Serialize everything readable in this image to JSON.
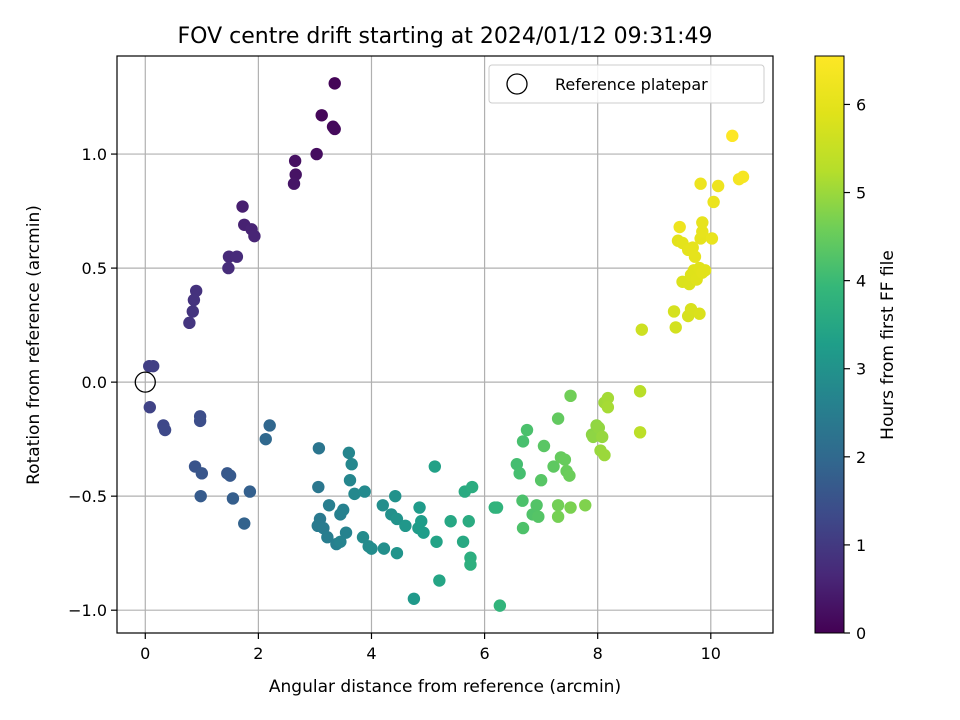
{
  "chart_data": {
    "type": "scatter",
    "title": "FOV centre drift starting at 2024/01/12 09:31:49",
    "xlabel": "Angular distance from reference (arcmin)",
    "ylabel": "Rotation from reference (arcmin)",
    "xlim": [
      -0.5,
      11.1
    ],
    "ylim": [
      -1.1,
      1.43
    ],
    "xticks": [
      0,
      2,
      4,
      6,
      8,
      10
    ],
    "xtick_labels": [
      "0",
      "2",
      "4",
      "6",
      "8",
      "10"
    ],
    "yticks": [
      -1.0,
      -0.5,
      0.0,
      0.5,
      1.0
    ],
    "ytick_labels": [
      "−1.0",
      "−0.5",
      "0.0",
      "0.5",
      "1.0"
    ],
    "grid": true,
    "legend": {
      "placement": "top-right",
      "entries": [
        "Reference platepar"
      ]
    },
    "reference_point": {
      "x": 0,
      "y": 0
    },
    "colorbar": {
      "label": "Hours from first FF file",
      "range": [
        0,
        6.55
      ],
      "ticks": [
        0,
        1,
        2,
        3,
        4,
        5,
        6
      ],
      "tick_labels": [
        "0",
        "1",
        "2",
        "3",
        "4",
        "5",
        "6"
      ],
      "colormap": "viridis"
    },
    "points": [
      [
        3.35,
        1.31,
        0.05
      ],
      [
        3.12,
        1.17,
        0.1
      ],
      [
        3.32,
        1.12,
        0.12
      ],
      [
        3.35,
        1.11,
        0.15
      ],
      [
        3.03,
        1.0,
        0.2
      ],
      [
        2.65,
        0.97,
        0.25
      ],
      [
        2.66,
        0.91,
        0.3
      ],
      [
        2.63,
        0.87,
        0.33
      ],
      [
        1.72,
        0.77,
        0.5
      ],
      [
        1.75,
        0.69,
        0.55
      ],
      [
        1.88,
        0.67,
        0.58
      ],
      [
        1.93,
        0.64,
        0.6
      ],
      [
        1.48,
        0.55,
        0.7
      ],
      [
        1.62,
        0.55,
        0.72
      ],
      [
        1.47,
        0.5,
        0.75
      ],
      [
        0.9,
        0.4,
        0.85
      ],
      [
        0.86,
        0.36,
        0.88
      ],
      [
        0.84,
        0.31,
        0.9
      ],
      [
        0.78,
        0.26,
        0.92
      ],
      [
        0.07,
        0.07,
        1.1
      ],
      [
        0.14,
        0.07,
        1.12
      ],
      [
        0.08,
        -0.11,
        1.2
      ],
      [
        0.32,
        -0.19,
        1.3
      ],
      [
        0.35,
        -0.21,
        1.32
      ],
      [
        0.97,
        -0.15,
        1.4
      ],
      [
        0.97,
        -0.17,
        1.42
      ],
      [
        0.88,
        -0.37,
        1.55
      ],
      [
        1.0,
        -0.4,
        1.58
      ],
      [
        1.45,
        -0.4,
        1.62
      ],
      [
        1.5,
        -0.41,
        1.65
      ],
      [
        0.98,
        -0.5,
        1.7
      ],
      [
        1.55,
        -0.51,
        1.75
      ],
      [
        1.85,
        -0.48,
        1.8
      ],
      [
        1.75,
        -0.62,
        1.85
      ],
      [
        2.2,
        -0.19,
        1.95
      ],
      [
        2.13,
        -0.25,
        2.0
      ],
      [
        3.07,
        -0.29,
        2.3
      ],
      [
        3.06,
        -0.46,
        2.35
      ],
      [
        3.09,
        -0.6,
        2.4
      ],
      [
        3.05,
        -0.63,
        2.42
      ],
      [
        3.15,
        -0.64,
        2.45
      ],
      [
        3.22,
        -0.68,
        2.5
      ],
      [
        3.25,
        -0.54,
        2.52
      ],
      [
        3.38,
        -0.71,
        2.55
      ],
      [
        3.45,
        -0.58,
        2.58
      ],
      [
        3.5,
        -0.56,
        2.6
      ],
      [
        3.55,
        -0.66,
        2.62
      ],
      [
        3.45,
        -0.7,
        2.64
      ],
      [
        3.6,
        -0.31,
        2.7
      ],
      [
        3.62,
        -0.43,
        2.72
      ],
      [
        3.65,
        -0.36,
        2.74
      ],
      [
        3.7,
        -0.49,
        2.76
      ],
      [
        3.88,
        -0.48,
        2.8
      ],
      [
        3.85,
        -0.68,
        2.82
      ],
      [
        3.95,
        -0.72,
        2.84
      ],
      [
        4.0,
        -0.73,
        2.86
      ],
      [
        4.2,
        -0.54,
        2.9
      ],
      [
        4.22,
        -0.73,
        2.92
      ],
      [
        4.35,
        -0.58,
        2.95
      ],
      [
        4.42,
        -0.5,
        3.0
      ],
      [
        4.45,
        -0.6,
        3.02
      ],
      [
        4.45,
        -0.75,
        3.05
      ],
      [
        4.6,
        -0.63,
        3.1
      ],
      [
        4.75,
        -0.95,
        3.15
      ],
      [
        4.85,
        -0.55,
        3.2
      ],
      [
        4.83,
        -0.64,
        3.22
      ],
      [
        4.88,
        -0.61,
        3.24
      ],
      [
        4.92,
        -0.66,
        3.26
      ],
      [
        5.12,
        -0.37,
        3.35
      ],
      [
        5.15,
        -0.7,
        3.4
      ],
      [
        5.2,
        -0.87,
        3.45
      ],
      [
        5.4,
        -0.61,
        3.5
      ],
      [
        5.62,
        -0.7,
        3.55
      ],
      [
        5.65,
        -0.48,
        3.6
      ],
      [
        5.72,
        -0.61,
        3.62
      ],
      [
        5.78,
        -0.46,
        3.65
      ],
      [
        5.75,
        -0.77,
        3.7
      ],
      [
        5.75,
        -0.8,
        3.72
      ],
      [
        6.18,
        -0.55,
        3.8
      ],
      [
        6.22,
        -0.55,
        3.82
      ],
      [
        6.27,
        -0.98,
        3.85
      ],
      [
        6.57,
        -0.36,
        4.1
      ],
      [
        6.62,
        -0.4,
        4.12
      ],
      [
        6.68,
        -0.26,
        4.15
      ],
      [
        6.75,
        -0.21,
        4.18
      ],
      [
        6.67,
        -0.52,
        4.2
      ],
      [
        6.68,
        -0.64,
        4.22
      ],
      [
        6.85,
        -0.58,
        4.25
      ],
      [
        6.92,
        -0.54,
        4.28
      ],
      [
        6.95,
        -0.59,
        4.3
      ],
      [
        7.0,
        -0.43,
        4.32
      ],
      [
        7.05,
        -0.28,
        4.35
      ],
      [
        7.22,
        -0.37,
        4.4
      ],
      [
        7.3,
        -0.16,
        4.45
      ],
      [
        7.35,
        -0.33,
        4.48
      ],
      [
        7.42,
        -0.34,
        4.5
      ],
      [
        7.45,
        -0.39,
        4.52
      ],
      [
        7.5,
        -0.41,
        4.55
      ],
      [
        7.52,
        -0.06,
        4.6
      ],
      [
        7.3,
        -0.54,
        4.62
      ],
      [
        7.3,
        -0.59,
        4.65
      ],
      [
        7.52,
        -0.55,
        4.7
      ],
      [
        7.78,
        -0.54,
        4.75
      ],
      [
        7.9,
        -0.23,
        4.85
      ],
      [
        7.92,
        -0.24,
        4.88
      ],
      [
        7.98,
        -0.19,
        4.9
      ],
      [
        8.02,
        -0.2,
        4.92
      ],
      [
        8.08,
        -0.24,
        4.95
      ],
      [
        8.05,
        -0.3,
        4.98
      ],
      [
        8.12,
        -0.32,
        5.0
      ],
      [
        8.12,
        -0.09,
        5.05
      ],
      [
        8.18,
        -0.07,
        5.08
      ],
      [
        8.18,
        -0.11,
        5.1
      ],
      [
        8.75,
        -0.04,
        5.3
      ],
      [
        8.75,
        -0.22,
        5.35
      ],
      [
        8.78,
        0.23,
        5.6
      ],
      [
        9.38,
        0.24,
        5.7
      ],
      [
        9.35,
        0.31,
        5.72
      ],
      [
        9.6,
        0.29,
        5.75
      ],
      [
        9.65,
        0.32,
        5.78
      ],
      [
        9.8,
        0.3,
        5.8
      ],
      [
        9.5,
        0.44,
        5.82
      ],
      [
        9.62,
        0.43,
        5.84
      ],
      [
        9.65,
        0.47,
        5.86
      ],
      [
        9.7,
        0.49,
        5.88
      ],
      [
        9.75,
        0.45,
        5.9
      ],
      [
        9.8,
        0.5,
        5.92
      ],
      [
        9.9,
        0.49,
        5.94
      ],
      [
        9.85,
        0.48,
        5.95
      ],
      [
        9.42,
        0.62,
        5.96
      ],
      [
        9.5,
        0.61,
        5.98
      ],
      [
        9.6,
        0.58,
        6.0
      ],
      [
        9.68,
        0.59,
        6.02
      ],
      [
        9.72,
        0.55,
        6.03
      ],
      [
        9.82,
        0.63,
        6.04
      ],
      [
        9.85,
        0.66,
        6.05
      ],
      [
        9.85,
        0.7,
        6.06
      ],
      [
        10.02,
        0.63,
        6.1
      ],
      [
        10.05,
        0.79,
        6.15
      ],
      [
        9.82,
        0.87,
        6.18
      ],
      [
        10.13,
        0.86,
        6.2
      ],
      [
        9.45,
        0.68,
        6.22
      ],
      [
        10.5,
        0.89,
        6.35
      ],
      [
        10.57,
        0.9,
        6.4
      ],
      [
        10.38,
        1.08,
        6.55
      ]
    ]
  }
}
